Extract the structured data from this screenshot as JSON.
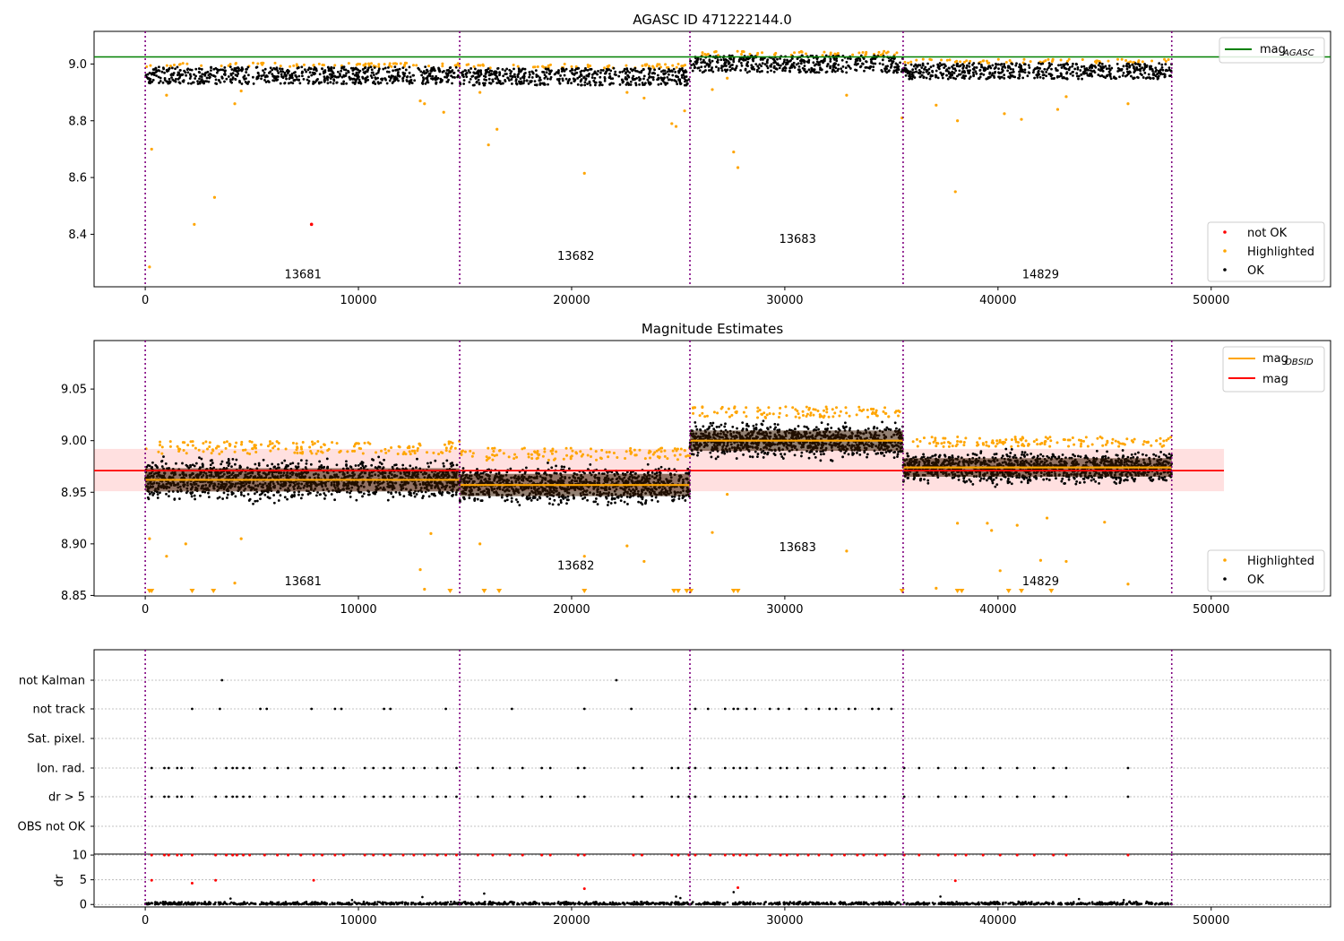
{
  "chart_data": [
    {
      "type": "scatter",
      "title": "AGASC ID 471222144.0",
      "xlabel": "",
      "ylabel": "",
      "xlim": [
        -2400,
        55600
      ],
      "ylim": [
        8.215,
        9.115
      ],
      "xticks": [
        0,
        10000,
        20000,
        30000,
        40000,
        50000
      ],
      "xtick_labels": [
        "0",
        "10000",
        "20000",
        "30000",
        "40000",
        "50000"
      ],
      "yticks": [
        8.4,
        8.6,
        8.8,
        9.0
      ],
      "ytick_labels": [
        "8.4",
        "8.6",
        "8.8",
        "9.0"
      ],
      "obsid_boundaries": [
        0,
        14750,
        25550,
        35550,
        48150
      ],
      "obsid_labels": [
        {
          "text": "13681",
          "x": 7400,
          "y": 8.245
        },
        {
          "text": "13682",
          "x": 20200,
          "y": 8.31
        },
        {
          "text": "13683",
          "x": 30600,
          "y": 8.37
        },
        {
          "text": "14829",
          "x": 42000,
          "y": 8.245
        }
      ],
      "reference_lines": [
        {
          "name": "mag_AGASC",
          "y": 9.025,
          "color": "#008000"
        }
      ],
      "ok_bands": [
        {
          "x0": 0,
          "x1": 14750,
          "center": 8.96,
          "half": 0.03
        },
        {
          "x0": 14750,
          "x1": 25550,
          "center": 8.955,
          "half": 0.03
        },
        {
          "x0": 25550,
          "x1": 35550,
          "center": 9.0,
          "half": 0.03
        },
        {
          "x0": 35550,
          "x1": 48150,
          "center": 8.975,
          "half": 0.028
        }
      ],
      "series": [
        {
          "name": "Highlighted",
          "color": "#ffa500",
          "points": [
            [
              300,
              8.7
            ],
            [
              200,
              8.285
            ],
            [
              1000,
              8.89
            ],
            [
              2300,
              8.435
            ],
            [
              3250,
              8.53
            ],
            [
              4200,
              8.86
            ],
            [
              4500,
              8.905
            ],
            [
              12900,
              8.87
            ],
            [
              13100,
              8.86
            ],
            [
              14000,
              8.83
            ],
            [
              15700,
              8.9
            ],
            [
              16100,
              8.715
            ],
            [
              16500,
              8.77
            ],
            [
              20600,
              8.615
            ],
            [
              22600,
              8.9
            ],
            [
              23400,
              8.88
            ],
            [
              24700,
              8.79
            ],
            [
              24900,
              8.78
            ],
            [
              25300,
              8.835
            ],
            [
              26600,
              8.91
            ],
            [
              27300,
              8.95
            ],
            [
              27600,
              8.69
            ],
            [
              27800,
              8.635
            ],
            [
              32900,
              8.89
            ],
            [
              35500,
              8.81
            ],
            [
              37100,
              8.855
            ],
            [
              38100,
              8.8
            ],
            [
              40300,
              8.825
            ],
            [
              41100,
              8.805
            ],
            [
              42800,
              8.84
            ],
            [
              43200,
              8.885
            ],
            [
              46100,
              8.86
            ],
            [
              38000,
              8.55
            ]
          ]
        },
        {
          "name": "not OK",
          "color": "#ff0000",
          "points": [
            [
              7800,
              8.435
            ]
          ]
        },
        {
          "name": "OK",
          "color": "#000000",
          "points": []
        }
      ],
      "legend_position": "lower right",
      "legend2_position": "upper right"
    },
    {
      "type": "scatter",
      "title": "Magnitude Estimates",
      "xlabel": "",
      "ylabel": "",
      "xlim": [
        -2400,
        55600
      ],
      "ylim": [
        8.8495,
        9.097
      ],
      "xticks": [
        0,
        10000,
        20000,
        30000,
        40000,
        50000
      ],
      "xtick_labels": [
        "0",
        "10000",
        "20000",
        "30000",
        "40000",
        "50000"
      ],
      "yticks": [
        8.85,
        8.9,
        8.95,
        9.0,
        9.05
      ],
      "ytick_labels": [
        "8.85",
        "8.90",
        "8.95",
        "9.00",
        "9.05"
      ],
      "obsid_boundaries": [
        0,
        14750,
        25550,
        35550,
        48150
      ],
      "obsid_labels": [
        {
          "text": "13681",
          "x": 7400,
          "y": 8.86
        },
        {
          "text": "13682",
          "x": 20200,
          "y": 8.875
        },
        {
          "text": "13683",
          "x": 30600,
          "y": 8.893
        },
        {
          "text": "14829",
          "x": 42000,
          "y": 8.86
        }
      ],
      "mag_line": {
        "name": "mag",
        "y": 8.971,
        "x0": -2400,
        "x1": 50600,
        "band": [
          8.951,
          8.992
        ],
        "color": "#ff0000"
      },
      "obsid_means": [
        {
          "name": "mag_OBSID",
          "x0": 0,
          "x1": 14750,
          "y": 8.962
        },
        {
          "x0": 14750,
          "x1": 25550,
          "y": 8.957
        },
        {
          "x0": 25550,
          "x1": 35550,
          "y": 9.0
        },
        {
          "x0": 35550,
          "x1": 48150,
          "y": 8.974
        }
      ],
      "ok_bands": [
        {
          "x0": 0,
          "x1": 14750,
          "center": 8.962,
          "half": 0.025
        },
        {
          "x0": 14750,
          "x1": 25550,
          "center": 8.957,
          "half": 0.024
        },
        {
          "x0": 25550,
          "x1": 35550,
          "center": 9.0,
          "half": 0.022
        },
        {
          "x0": 35550,
          "x1": 48150,
          "center": 8.974,
          "half": 0.02
        }
      ],
      "series": [
        {
          "name": "Highlighted",
          "color": "#ffa500",
          "points": [
            [
              200,
              8.905
            ],
            [
              1000,
              8.888
            ],
            [
              1900,
              8.9
            ],
            [
              4200,
              8.862
            ],
            [
              4500,
              8.905
            ],
            [
              12900,
              8.875
            ],
            [
              13100,
              8.856
            ],
            [
              13400,
              8.91
            ],
            [
              15700,
              8.9
            ],
            [
              20600,
              8.888
            ],
            [
              22600,
              8.898
            ],
            [
              23400,
              8.883
            ],
            [
              26600,
              8.911
            ],
            [
              27300,
              8.948
            ],
            [
              32900,
              8.893
            ],
            [
              37100,
              8.857
            ],
            [
              38100,
              8.92
            ],
            [
              39500,
              8.92
            ],
            [
              40100,
              8.874
            ],
            [
              40900,
              8.918
            ],
            [
              42000,
              8.884
            ],
            [
              43200,
              8.883
            ],
            [
              45000,
              8.921
            ],
            [
              46100,
              8.861
            ],
            [
              42300,
              8.925
            ],
            [
              39700,
              8.913
            ]
          ]
        },
        {
          "name": "OK",
          "color": "#000000",
          "points": []
        }
      ],
      "clipped_markers": [
        200,
        300,
        2200,
        3200,
        14300,
        15900,
        16600,
        20600,
        24800,
        25000,
        25400,
        25600,
        27600,
        27800,
        35500,
        38100,
        38300,
        40500,
        41100,
        42500
      ],
      "legend_position": "lower right",
      "legend2_position": "upper right"
    },
    {
      "type": "scatter",
      "title": "",
      "xlabel": "",
      "ylabel": "",
      "xlim": [
        -2400,
        55600
      ],
      "categories": [
        "not Kalman",
        "not track",
        "Sat. pixel.",
        "Ion. rad.",
        "dr > 5",
        "OBS not OK"
      ],
      "obsid_boundaries": [
        0,
        14750,
        25550,
        35550,
        48150
      ],
      "flags": {
        "not Kalman": [
          3600,
          22100
        ],
        "not track": [
          2200,
          3500,
          5400,
          5700,
          7800,
          8900,
          9200,
          11200,
          11500,
          14100,
          17200,
          20600,
          22800,
          25800,
          26400,
          27200,
          27600,
          27800,
          28200,
          28600,
          29300,
          29700,
          30200,
          31000,
          31600,
          32100,
          32400,
          33000,
          33300,
          34100,
          34400,
          35000
        ],
        "Sat. pixel.": [],
        "Ion. rad.": [
          300,
          900,
          1100,
          1500,
          1700,
          2200,
          3300,
          3800,
          4100,
          4300,
          4600,
          4900,
          5600,
          6200,
          6700,
          7300,
          7900,
          8300,
          8900,
          9300,
          10300,
          10700,
          11200,
          11500,
          12100,
          12600,
          13100,
          13700,
          14100,
          14600,
          15600,
          16300,
          17100,
          17700,
          18600,
          19000,
          20300,
          20600,
          22900,
          23300,
          24700,
          25000,
          25500,
          25800,
          26500,
          27200,
          27600,
          27900,
          28200,
          28700,
          29300,
          29800,
          30100,
          30600,
          31100,
          31600,
          32200,
          32800,
          33400,
          33700,
          34300,
          34700,
          35600,
          36300,
          37200,
          38000,
          38500,
          39300,
          40100,
          40900,
          41700,
          42600,
          43200,
          46100
        ],
        "dr > 5": [
          300,
          900,
          1100,
          1500,
          1700,
          2200,
          3300,
          3800,
          4100,
          4300,
          4600,
          4900,
          5600,
          6200,
          6700,
          7300,
          7900,
          8300,
          8900,
          9300,
          10300,
          10700,
          11200,
          11500,
          12100,
          12600,
          13100,
          13700,
          14100,
          14600,
          15600,
          16300,
          17100,
          17700,
          18600,
          19000,
          20300,
          20600,
          22900,
          23300,
          24700,
          25000,
          25500,
          25800,
          26500,
          27200,
          27600,
          27900,
          28200,
          28700,
          29300,
          29800,
          30100,
          30600,
          31100,
          31600,
          32200,
          32800,
          33400,
          33700,
          34300,
          34700,
          35600,
          36300,
          37200,
          38000,
          38500,
          39300,
          40100,
          40900,
          41700,
          42600,
          43200,
          46100
        ],
        "OBS not OK": []
      }
    },
    {
      "type": "scatter",
      "title": "",
      "xlabel": "",
      "ylabel": "dr",
      "xlim": [
        -2400,
        55600
      ],
      "ylim": [
        -0.5,
        10.2
      ],
      "yticks": [
        0,
        5,
        10
      ],
      "ytick_labels": [
        "0",
        "5",
        "10"
      ],
      "xticks": [
        0,
        10000,
        20000,
        30000,
        40000,
        50000
      ],
      "xtick_labels": [
        "0",
        "10000",
        "20000",
        "30000",
        "40000",
        "50000"
      ],
      "obsid_boundaries": [
        0,
        14750,
        25550,
        35550,
        48150
      ],
      "series": [
        {
          "name": "dr > 5",
          "color": "#ff0000",
          "points": [
            [
              300,
              10
            ],
            [
              900,
              10
            ],
            [
              1100,
              10
            ],
            [
              1500,
              10
            ],
            [
              1700,
              10
            ],
            [
              2200,
              10
            ],
            [
              3300,
              10
            ],
            [
              3800,
              10
            ],
            [
              4100,
              10
            ],
            [
              4300,
              10
            ],
            [
              4600,
              10
            ],
            [
              4900,
              10
            ],
            [
              5600,
              10
            ],
            [
              6200,
              10
            ],
            [
              6700,
              10
            ],
            [
              7300,
              10
            ],
            [
              7900,
              10
            ],
            [
              8300,
              10
            ],
            [
              8900,
              10
            ],
            [
              9300,
              10
            ],
            [
              10300,
              10
            ],
            [
              10700,
              10
            ],
            [
              11200,
              10
            ],
            [
              11500,
              10
            ],
            [
              12100,
              10
            ],
            [
              12600,
              10
            ],
            [
              13100,
              10
            ],
            [
              13700,
              10
            ],
            [
              14100,
              10
            ],
            [
              14600,
              10
            ],
            [
              15600,
              10
            ],
            [
              16300,
              10
            ],
            [
              17100,
              10
            ],
            [
              17700,
              10
            ],
            [
              18600,
              10
            ],
            [
              19000,
              10
            ],
            [
              20300,
              10
            ],
            [
              20600,
              10
            ],
            [
              22900,
              10
            ],
            [
              23300,
              10
            ],
            [
              24700,
              10
            ],
            [
              25000,
              10
            ],
            [
              25500,
              10
            ],
            [
              25800,
              10
            ],
            [
              26500,
              10
            ],
            [
              27200,
              10
            ],
            [
              27600,
              10
            ],
            [
              27900,
              10
            ],
            [
              28200,
              10
            ],
            [
              28700,
              10
            ],
            [
              29300,
              10
            ],
            [
              29800,
              10
            ],
            [
              30100,
              10
            ],
            [
              30600,
              10
            ],
            [
              31100,
              10
            ],
            [
              31600,
              10
            ],
            [
              32200,
              10
            ],
            [
              32800,
              10
            ],
            [
              33400,
              10
            ],
            [
              33700,
              10
            ],
            [
              34300,
              10
            ],
            [
              34700,
              10
            ],
            [
              35600,
              10
            ],
            [
              36300,
              10
            ],
            [
              37200,
              10
            ],
            [
              38000,
              10
            ],
            [
              38500,
              10
            ],
            [
              39300,
              10
            ],
            [
              40100,
              10
            ],
            [
              40900,
              10
            ],
            [
              41700,
              10
            ],
            [
              42600,
              10
            ],
            [
              43200,
              10
            ],
            [
              46100,
              10
            ],
            [
              300,
              4.9
            ],
            [
              2200,
              4.3
            ],
            [
              3300,
              4.9
            ],
            [
              7900,
              4.9
            ],
            [
              20600,
              3.2
            ],
            [
              27800,
              3.4
            ],
            [
              38000,
              4.8
            ]
          ]
        },
        {
          "name": "dr",
          "color": "#000000",
          "points": [
            [
              13000,
              1.5
            ],
            [
              15900,
              2.2
            ],
            [
              24900,
              1.6
            ],
            [
              25100,
              1.3
            ],
            [
              27600,
              2.5
            ],
            [
              37300,
              1.6
            ],
            [
              43800,
              1.1
            ],
            [
              4000,
              1.2
            ],
            [
              9700,
              0.9
            ],
            [
              45900,
              0.9
            ]
          ]
        }
      ]
    }
  ]
}
